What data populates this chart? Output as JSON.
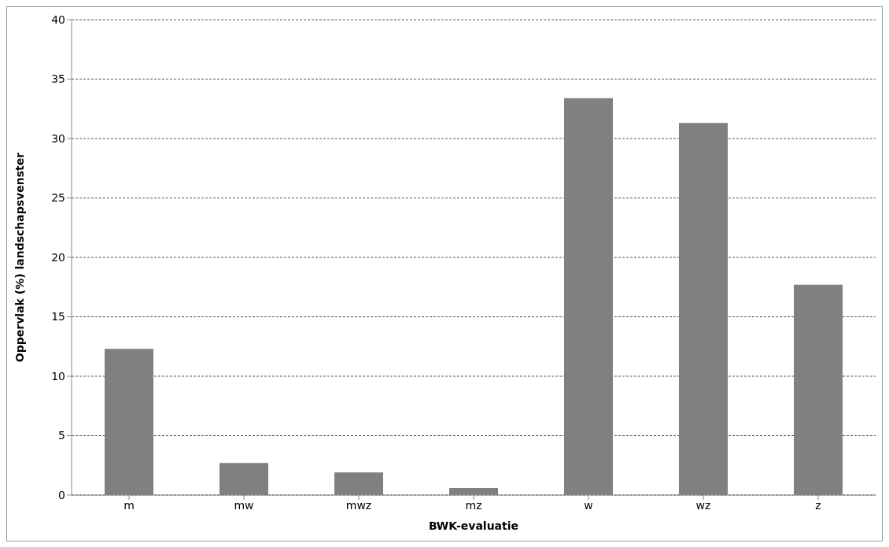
{
  "chart_data": {
    "type": "bar",
    "xlabel": "BWK-evaluatie",
    "ylabel": "Oppervlak (%) landschapsvenster",
    "categories": [
      "m",
      "mw",
      "mwz",
      "mz",
      "w",
      "wz",
      "z"
    ],
    "values": [
      12.3,
      2.7,
      1.9,
      0.6,
      33.4,
      31.3,
      17.7
    ],
    "color": "#808080",
    "ylim": [
      0,
      40
    ],
    "yticks": [
      0,
      5,
      10,
      15,
      20,
      25,
      30,
      35,
      40
    ],
    "grid": "y"
  }
}
